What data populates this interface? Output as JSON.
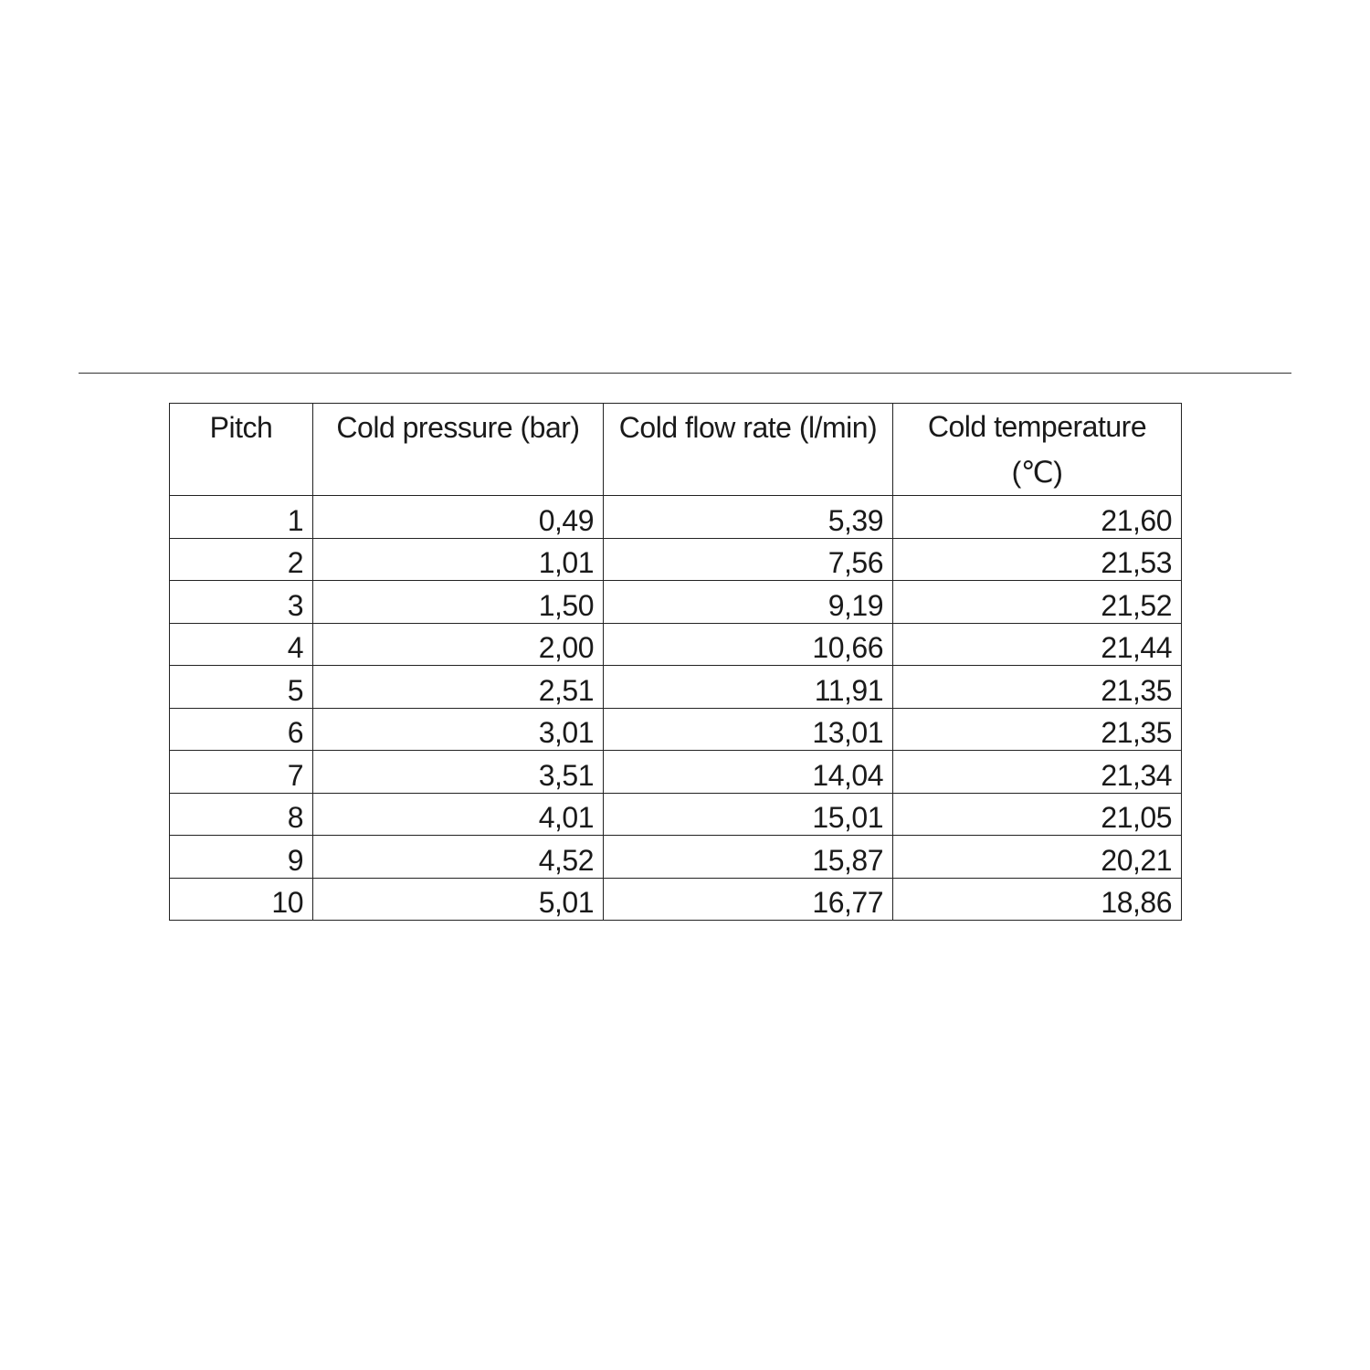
{
  "table": {
    "headers": [
      "Pitch",
      "Cold pressure (bar)",
      "Cold flow rate (l/min)",
      "Cold temperature (℃)"
    ],
    "rows": [
      [
        "1",
        "0,49",
        "5,39",
        "21,60"
      ],
      [
        "2",
        "1,01",
        "7,56",
        "21,53"
      ],
      [
        "3",
        "1,50",
        "9,19",
        "21,52"
      ],
      [
        "4",
        "2,00",
        "10,66",
        "21,44"
      ],
      [
        "5",
        "2,51",
        "11,91",
        "21,35"
      ],
      [
        "6",
        "3,01",
        "13,01",
        "21,35"
      ],
      [
        "7",
        "3,51",
        "14,04",
        "21,34"
      ],
      [
        "8",
        "4,01",
        "15,01",
        "21,05"
      ],
      [
        "9",
        "4,52",
        "15,87",
        "20,21"
      ],
      [
        "10",
        "5,01",
        "16,77",
        "18,86"
      ]
    ]
  }
}
